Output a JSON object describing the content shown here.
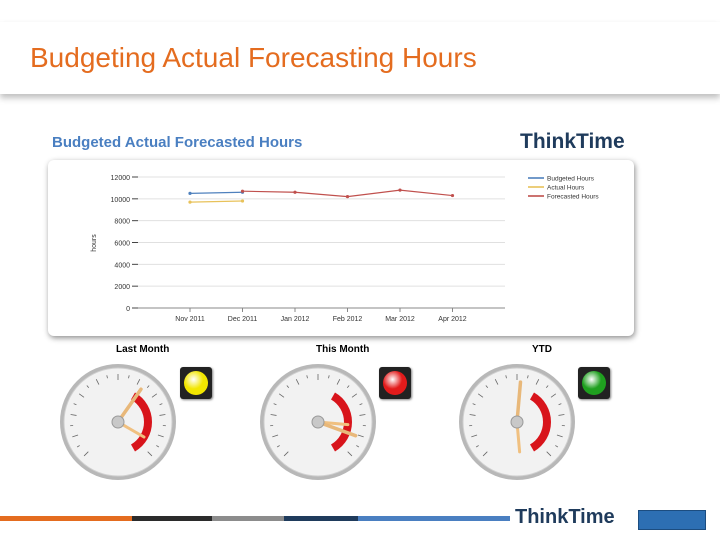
{
  "slide": {
    "title": "Budgeting Actual Forecasting Hours"
  },
  "logo": {
    "text": "ThinkTime"
  },
  "chart_data": {
    "type": "line",
    "title": "Budgeted Actual Forecasted Hours",
    "ylabel": "hours",
    "xlabel": "",
    "categories": [
      "Nov 2011",
      "Dec 2011",
      "Jan 2012",
      "Feb 2012",
      "Mar 2012",
      "Apr 2012"
    ],
    "y_ticks": [
      0,
      2000,
      4000,
      6000,
      8000,
      10000,
      12000
    ],
    "y_tick_labels": [
      "0",
      "2000",
      "4000",
      "6000",
      "8000",
      "10000",
      "12000"
    ],
    "ylim": [
      0,
      12000
    ],
    "grid": true,
    "legend_placement": "top-right",
    "series": [
      {
        "name": "Budgeted Hours",
        "color": "#4f81bd",
        "values": [
          10500,
          10600,
          null,
          null,
          null,
          null
        ]
      },
      {
        "name": "Actual Hours",
        "color": "#e8c25a",
        "values": [
          9700,
          9800,
          null,
          null,
          null,
          null
        ]
      },
      {
        "name": "Forecasted Hours",
        "color": "#c0504d",
        "values": [
          null,
          10700,
          10600,
          10200,
          10800,
          10300
        ]
      }
    ]
  },
  "gauges": [
    {
      "label": "Last Month",
      "light_color": "#f2e600",
      "needle_angle": 35,
      "needle2_angle": 120
    },
    {
      "label": "This Month",
      "light_color": "#e21b1b",
      "needle_angle": 110,
      "needle2_angle": 95
    },
    {
      "label": "YTD",
      "light_color": "#1fa01f",
      "needle_angle": 5,
      "needle2_angle": 175
    }
  ],
  "colors": {
    "title_orange": "#e46c1f",
    "footer": [
      "#e46c1f",
      "#2b2b2b",
      "#8c8c8c",
      "#1f3b5c",
      "#4a7fc1"
    ]
  }
}
